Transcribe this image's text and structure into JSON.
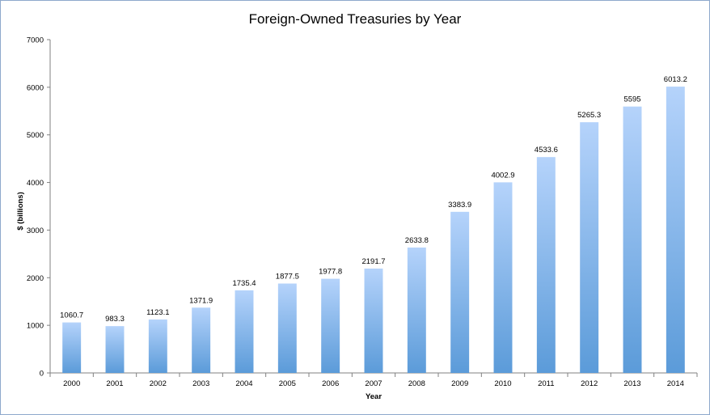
{
  "chart_data": {
    "type": "bar",
    "title": "Foreign-Owned Treasuries by Year",
    "xlabel": "Year",
    "ylabel": "$ (billions)",
    "categories": [
      "2000",
      "2001",
      "2002",
      "2003",
      "2004",
      "2005",
      "2006",
      "2007",
      "2008",
      "2009",
      "2010",
      "2011",
      "2012",
      "2013",
      "2014"
    ],
    "values": [
      1060.7,
      983.3,
      1123.1,
      1371.9,
      1735.4,
      1877.5,
      1977.8,
      2191.7,
      2633.8,
      3383.9,
      4002.9,
      4533.6,
      5265.3,
      5595,
      6013.2
    ],
    "value_labels": [
      "1060.7",
      "983.3",
      "1123.1",
      "1371.9",
      "1735.4",
      "1877.5",
      "1977.8",
      "2191.7",
      "2633.8",
      "3383.9",
      "4002.9",
      "4533.6",
      "5265.3",
      "5595",
      "6013.2"
    ],
    "ylim": [
      0,
      7000
    ],
    "yticks": [
      "0",
      "1000",
      "2000",
      "3000",
      "4000",
      "5000",
      "6000",
      "7000"
    ],
    "grid": false,
    "legend": "none",
    "colors": {
      "bar_top": "#b5d3fb",
      "bar_bottom": "#5b9bd9",
      "axis": "#808080"
    }
  }
}
